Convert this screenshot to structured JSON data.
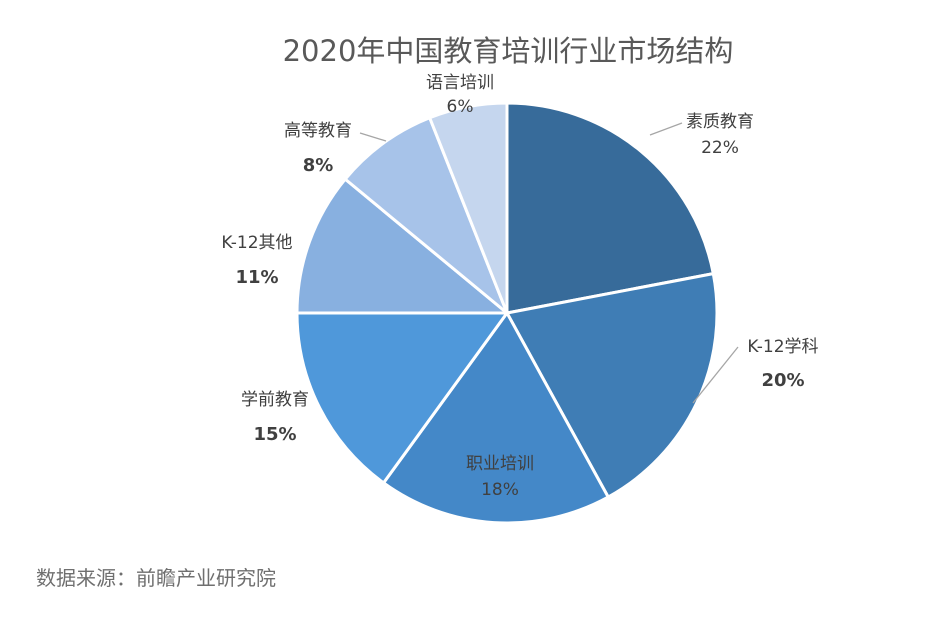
{
  "chart_data": {
    "type": "pie",
    "title": "2020年中国教育培训行业市场结构",
    "categories": [
      "素质教育",
      "K-12学科",
      "职业培训",
      "学前教育",
      "K-12其他",
      "高等教育",
      "语言培训"
    ],
    "values": [
      22,
      20,
      18,
      15,
      11,
      8,
      6
    ],
    "value_labels": [
      "22%",
      "20%",
      "18%",
      "15%",
      "11%",
      "8%",
      "6%"
    ],
    "colors": [
      "#376b9a",
      "#3f7db5",
      "#4488c8",
      "#4f98da",
      "#88b0e0",
      "#a7c3e9",
      "#c5d6ee"
    ],
    "start_angle_deg": 0,
    "direction": "clockwise",
    "slice_border_color": "#ffffff"
  },
  "source": "数据来源：前瞻产业研究院"
}
